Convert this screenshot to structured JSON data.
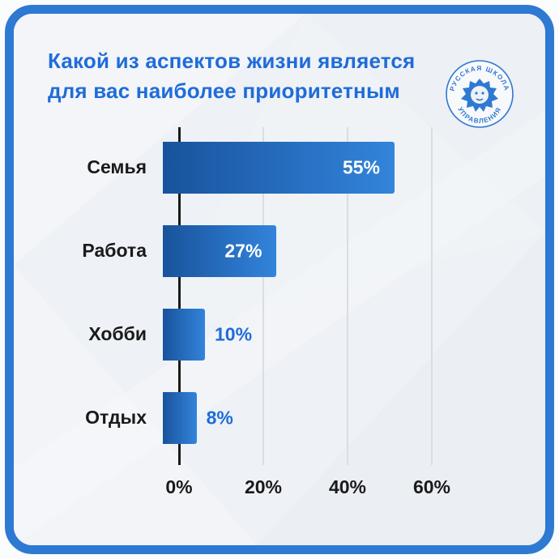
{
  "title": {
    "lines": [
      "Какой из аспектов жизни является",
      "для вас наиболее приоритетным"
    ]
  },
  "logo": {
    "top_text": "РУССКАЯ ШКОЛА",
    "bottom_text": "УПРАВЛЕНИЯ"
  },
  "chart_data": {
    "type": "bar",
    "orientation": "horizontal",
    "title": "Какой из аспектов жизни является для вас наиболее приоритетным",
    "categories": [
      "Семья",
      "Работа",
      "Хобби",
      "Отдых"
    ],
    "values": [
      55,
      27,
      10,
      8
    ],
    "value_labels": [
      "55%",
      "27%",
      "10%",
      "8%"
    ],
    "xtick_labels": [
      "0%",
      "20%",
      "40%",
      "60%"
    ],
    "xlim": [
      0,
      60
    ],
    "grid": true,
    "legend": false
  },
  "colors": {
    "frame": "#2e79d2",
    "card_bg": "#eef1f5",
    "title": "#1f6cd9",
    "bar_start": "#18539c",
    "bar_end": "#3384dc",
    "value_inside": "#ffffff",
    "value_outside": "#1f6cd9",
    "axis": "#1a1a1a",
    "grid": "#d9dde3",
    "category": "#1a1a1a"
  }
}
